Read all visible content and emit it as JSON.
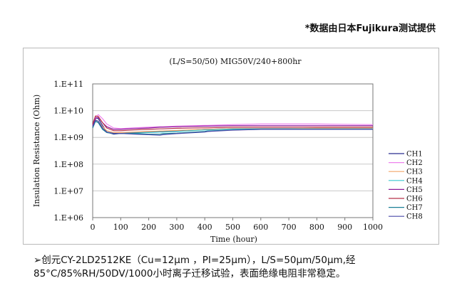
{
  "header_note": "*数据由日本Fujikura测试提供",
  "caption": {
    "line1": "➢创元CY-2LD2512KE（Cu=12μm ，PI=25μm），L/S=50μm/50μm,经",
    "line2": "85°C/85%RH/50DV/1000小时离子迁移试验，表面绝缘电阻非常稳定。"
  },
  "chart_data": {
    "type": "line",
    "title": "(L/S=50/50) MIG50V/240+800hr",
    "xlabel": "Time (hour)",
    "ylabel": "Insulation Resistance (Ohm)",
    "xlim": [
      0,
      1000
    ],
    "ylim": [
      6,
      11
    ],
    "y_scale": "log",
    "x_ticks": [
      0,
      100,
      200,
      300,
      400,
      500,
      600,
      700,
      800,
      900,
      1000
    ],
    "y_ticks": [
      {
        "value": 6,
        "label": "1.E+06"
      },
      {
        "value": 7,
        "label": "1.E+07"
      },
      {
        "value": 8,
        "label": "1.E+08"
      },
      {
        "value": 9,
        "label": "1.E+09"
      },
      {
        "value": 10,
        "label": "1.E+10"
      },
      {
        "value": 11,
        "label": "1.E+11"
      }
    ],
    "grid": true,
    "legend_position": "right",
    "series": [
      {
        "name": "CH1",
        "color": "#2b2f8f",
        "x": [
          0,
          10,
          20,
          35,
          50,
          75,
          100,
          150,
          200,
          240,
          250,
          300,
          400,
          410,
          500,
          600,
          700,
          800,
          900,
          1000
        ],
        "y": [
          9.5,
          9.75,
          9.7,
          9.45,
          9.2,
          9.12,
          9.15,
          9.18,
          9.2,
          9.22,
          9.22,
          9.24,
          9.3,
          9.3,
          9.33,
          9.33,
          9.33,
          9.33,
          9.33,
          9.33
        ]
      },
      {
        "name": "CH2",
        "color": "#ee82ee",
        "x": [
          0,
          10,
          20,
          35,
          50,
          75,
          100,
          150,
          200,
          240,
          250,
          300,
          400,
          410,
          500,
          600,
          700,
          800,
          900,
          1000
        ],
        "y": [
          9.45,
          9.75,
          9.85,
          9.7,
          9.5,
          9.35,
          9.33,
          9.36,
          9.38,
          9.4,
          9.4,
          9.42,
          9.45,
          9.45,
          9.48,
          9.5,
          9.5,
          9.5,
          9.49,
          9.48
        ]
      },
      {
        "name": "CH3",
        "color": "#f2a66a",
        "x": [
          0,
          10,
          20,
          35,
          50,
          75,
          100,
          150,
          200,
          240,
          250,
          300,
          400,
          410,
          500,
          600,
          700,
          800,
          900,
          1000
        ],
        "y": [
          9.4,
          9.65,
          9.6,
          9.4,
          9.25,
          9.18,
          9.18,
          9.2,
          9.22,
          9.24,
          9.24,
          9.26,
          9.3,
          9.3,
          9.33,
          9.33,
          9.33,
          9.34,
          9.34,
          9.34
        ]
      },
      {
        "name": "CH4",
        "color": "#38c8cf",
        "x": [
          0,
          10,
          20,
          35,
          50,
          75,
          100,
          150,
          200,
          240,
          250,
          300,
          400,
          410,
          500,
          600,
          700,
          800,
          900,
          1000
        ],
        "y": [
          9.4,
          9.6,
          9.55,
          9.35,
          9.2,
          9.15,
          9.15,
          9.16,
          9.18,
          9.2,
          9.2,
          9.22,
          9.28,
          9.28,
          9.31,
          9.32,
          9.32,
          9.32,
          9.32,
          9.32
        ]
      },
      {
        "name": "CH5",
        "color": "#8b1a9a",
        "x": [
          0,
          10,
          20,
          35,
          50,
          75,
          100,
          150,
          200,
          240,
          250,
          300,
          400,
          410,
          500,
          600,
          700,
          800,
          900,
          1000
        ],
        "y": [
          9.45,
          9.7,
          9.75,
          9.55,
          9.4,
          9.3,
          9.3,
          9.33,
          9.35,
          9.38,
          9.38,
          9.4,
          9.42,
          9.42,
          9.44,
          9.44,
          9.44,
          9.44,
          9.44,
          9.44
        ]
      },
      {
        "name": "CH6",
        "color": "#b8324a",
        "x": [
          0,
          10,
          20,
          35,
          50,
          75,
          100,
          150,
          200,
          240,
          250,
          300,
          400,
          410,
          500,
          600,
          700,
          800,
          900,
          1000
        ],
        "y": [
          9.5,
          9.8,
          9.78,
          9.55,
          9.35,
          9.25,
          9.25,
          9.28,
          9.3,
          9.32,
          9.32,
          9.34,
          9.36,
          9.36,
          9.38,
          9.38,
          9.38,
          9.38,
          9.38,
          9.38
        ]
      },
      {
        "name": "CH7",
        "color": "#1a7f96",
        "x": [
          0,
          10,
          20,
          35,
          50,
          75,
          100,
          150,
          200,
          240,
          250,
          300,
          400,
          410,
          500,
          600,
          700,
          800,
          900,
          1000
        ],
        "y": [
          9.35,
          9.6,
          9.55,
          9.3,
          9.18,
          9.14,
          9.15,
          9.14,
          9.12,
          9.12,
          9.14,
          9.16,
          9.22,
          9.24,
          9.28,
          9.3,
          9.3,
          9.3,
          9.3,
          9.3
        ]
      },
      {
        "name": "CH8",
        "color": "#4a4aa8",
        "x": [
          0,
          10,
          20,
          35,
          50,
          75,
          100,
          150,
          200,
          240,
          250,
          300,
          400,
          410,
          500,
          600,
          700,
          800,
          900,
          1000
        ],
        "y": [
          9.4,
          9.65,
          9.6,
          9.35,
          9.2,
          9.15,
          9.15,
          9.12,
          9.1,
          9.08,
          9.1,
          9.14,
          9.2,
          9.22,
          9.27,
          9.3,
          9.3,
          9.3,
          9.3,
          9.3
        ]
      }
    ]
  }
}
